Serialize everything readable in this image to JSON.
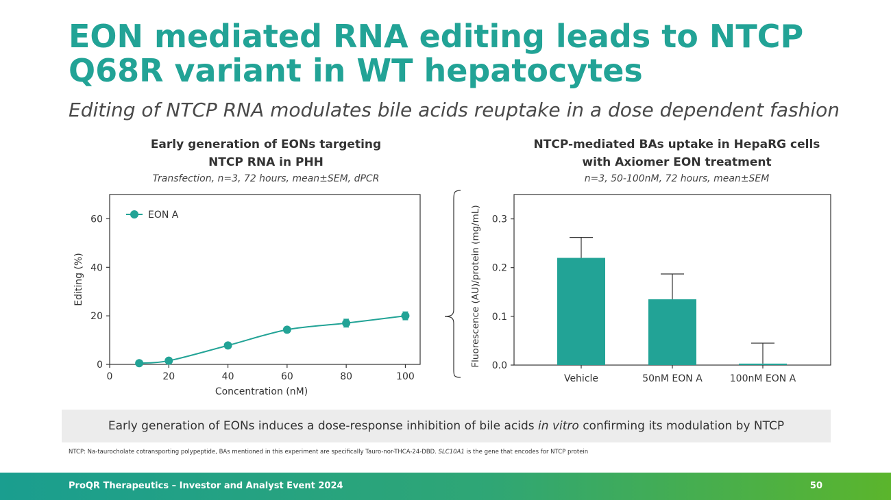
{
  "slide": {
    "title": "EON mediated RNA editing leads to NTCP Q68R variant in WT hepatocytes",
    "subtitle": "Editing of NTCP RNA modulates bile acids reuptake in a dose dependent fashion",
    "conclusion_prefix": "Early generation of EONs induces a dose-response inhibition of bile acids ",
    "conclusion_italic": "in vitro",
    "conclusion_suffix": " confirming its modulation by NTCP",
    "footnote_prefix": "NTCP: Na-taurocholate cotransporting polypeptide, BAs mentioned in this experiment are specifically Tauro-nor-THCA-24-DBD. ",
    "footnote_italic": "SLC10A1",
    "footnote_suffix": " is the gene that encodes for NTCP protein",
    "footer_text": "ProQR Therapeutics – Investor and Analyst Event 2024",
    "page_number": "50"
  },
  "colors": {
    "teal": "#22a396",
    "axis": "#333333"
  },
  "chart_data": [
    {
      "type": "line",
      "title_line1": "Early generation of EONs targeting",
      "title_line2": "NTCP RNA in PHH",
      "method": "Transfection, n=3, 72 hours, mean±SEM, dPCR",
      "xlabel": "Concentration (nM)",
      "ylabel": "Editing (%)",
      "xlim": [
        0,
        105
      ],
      "ylim": [
        0,
        70
      ],
      "xticks": [
        0,
        20,
        40,
        60,
        80,
        100
      ],
      "yticks": [
        0,
        20,
        40,
        60
      ],
      "legend_position": "top-left",
      "series": [
        {
          "name": "EON A",
          "x": [
            10,
            20,
            40,
            60,
            80,
            100
          ],
          "y": [
            0.5,
            1.5,
            7.8,
            14.3,
            17.0,
            20.0
          ],
          "err": [
            0.3,
            0.6,
            0.8,
            1.0,
            1.6,
            1.6
          ]
        }
      ]
    },
    {
      "type": "bar",
      "title_line1": "NTCP-mediated BAs uptake in HepaRG cells",
      "title_line2": "with Axiomer EON treatment",
      "method": "n=3, 50-100nM, 72 hours, mean±SEM",
      "xlabel": "",
      "ylabel": "Fluorescence (AU)/protein (mg/mL)",
      "ylim": [
        0,
        0.35
      ],
      "yticks": [
        0.0,
        0.1,
        0.2,
        0.3
      ],
      "ytick_labels": [
        "0.0",
        "0.1",
        "0.2",
        "0.3"
      ],
      "categories": [
        "Vehicle",
        "50nM EON A",
        "100nM EON A"
      ],
      "values": [
        0.22,
        0.135,
        0.003
      ],
      "err": [
        0.042,
        0.052,
        0.042
      ]
    }
  ]
}
